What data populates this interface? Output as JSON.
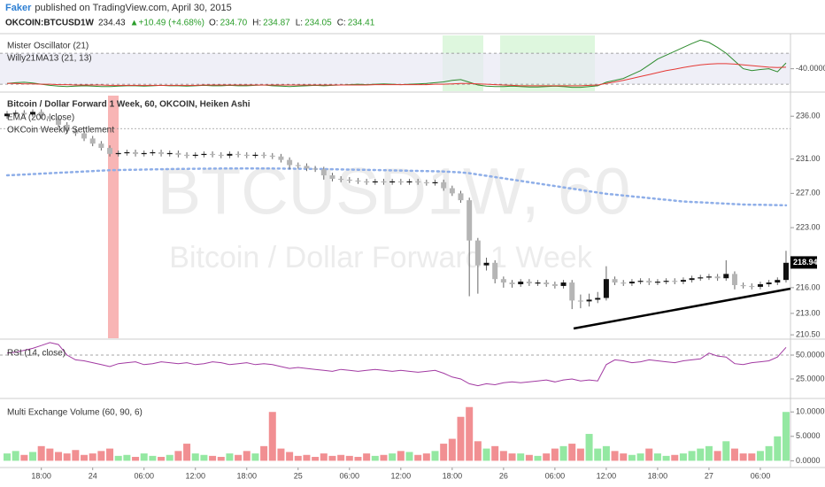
{
  "header": {
    "author": "Faker",
    "published": "published on TradingView.com, April 30, 2015",
    "symbol": "OKCOIN:BTCUSD1W",
    "last": "234.43",
    "change": "▲+10.49 (+4.68%)",
    "ohlc": [
      {
        "label": "O:",
        "value": "234.70"
      },
      {
        "label": "H:",
        "value": "234.87"
      },
      {
        "label": "L:",
        "value": "234.05"
      },
      {
        "label": "C:",
        "value": "234.41"
      }
    ]
  },
  "chart_data": [
    {
      "type": "candlestick",
      "title": "Bitcoin / Dollar Forward 1 Week, 60, OKCOIN, Heiken Ashi",
      "watermark": [
        "BTCUSD1W, 60",
        "Bitcoin / Dollar Forward 1 Week"
      ],
      "categories": [
        null,
        null,
        null,
        null,
        "18:00",
        null,
        null,
        null,
        null,
        null,
        "24",
        null,
        null,
        null,
        null,
        null,
        "06:00",
        null,
        null,
        null,
        null,
        null,
        "12:00",
        null,
        null,
        null,
        null,
        null,
        "18:00",
        null,
        null,
        null,
        null,
        null,
        "25",
        null,
        null,
        null,
        null,
        null,
        "06:00",
        null,
        null,
        null,
        null,
        null,
        "12:00",
        null,
        null,
        null,
        null,
        null,
        "18:00",
        null,
        null,
        null,
        null,
        null,
        "26",
        null,
        null,
        null,
        null,
        null,
        "06:00",
        null,
        null,
        null,
        null,
        null,
        "12:00",
        null,
        null,
        null,
        null,
        null,
        "18:00",
        null,
        null,
        null,
        null,
        null,
        "27",
        null,
        null,
        null,
        null,
        null,
        "06:00",
        null,
        null,
        null
      ],
      "open": [
        236.0,
        236.3,
        236.4,
        236.2,
        236.5,
        236.0,
        235.7,
        235.0,
        234.3,
        234.0,
        233.4,
        232.8,
        232.3,
        231.6,
        231.7,
        231.8,
        231.6,
        231.7,
        231.8,
        231.6,
        231.7,
        231.5,
        231.4,
        231.5,
        231.6,
        231.5,
        231.4,
        231.6,
        231.5,
        231.4,
        231.5,
        231.4,
        231.3,
        230.9,
        230.3,
        230.2,
        229.9,
        229.8,
        229.1,
        228.7,
        228.6,
        228.5,
        228.4,
        228.3,
        228.4,
        228.3,
        228.4,
        228.3,
        228.4,
        228.3,
        228.2,
        228.3,
        227.6,
        227.0,
        226.2,
        221.5,
        218.6,
        218.9,
        217.0,
        216.6,
        216.4,
        216.7,
        216.5,
        216.6,
        216.4,
        216.2,
        216.6,
        214.5,
        214.4,
        214.6,
        214.8,
        217.0,
        216.6,
        216.5,
        216.7,
        216.8,
        216.6,
        216.7,
        216.8,
        216.7,
        216.9,
        217.1,
        217.2,
        217.3,
        217.1,
        217.6,
        216.3,
        216.2,
        216.1,
        216.4,
        216.6,
        216.9
      ],
      "high": [
        236.6,
        236.7,
        236.7,
        236.8,
        236.8,
        236.3,
        236.0,
        235.3,
        234.6,
        234.3,
        233.7,
        233.1,
        232.6,
        232.0,
        232.1,
        232.1,
        232.0,
        232.1,
        232.1,
        232.0,
        232.0,
        231.8,
        231.8,
        231.9,
        231.9,
        231.8,
        231.9,
        231.9,
        231.8,
        231.8,
        231.8,
        231.7,
        231.6,
        231.2,
        230.6,
        230.5,
        230.2,
        230.1,
        229.4,
        229.0,
        228.9,
        228.8,
        228.7,
        228.7,
        228.7,
        228.7,
        228.7,
        228.7,
        228.7,
        228.6,
        228.6,
        228.6,
        227.9,
        227.3,
        226.5,
        221.8,
        219.5,
        219.2,
        217.3,
        216.9,
        217.0,
        217.0,
        216.9,
        216.9,
        216.7,
        216.9,
        216.9,
        215.2,
        215.3,
        215.5,
        218.5,
        217.3,
        216.9,
        217.0,
        217.1,
        217.1,
        217.0,
        217.1,
        217.1,
        217.2,
        217.4,
        217.5,
        217.6,
        217.6,
        219.2,
        217.9,
        216.6,
        216.5,
        216.7,
        216.9,
        217.2,
        220.3
      ],
      "low": [
        235.7,
        236.0,
        235.9,
        235.9,
        235.7,
        235.4,
        234.7,
        234.0,
        233.7,
        233.1,
        232.5,
        232.0,
        231.3,
        231.3,
        231.4,
        231.3,
        231.3,
        231.4,
        231.3,
        231.3,
        231.2,
        231.1,
        231.1,
        231.2,
        231.2,
        231.1,
        231.1,
        231.2,
        231.1,
        231.1,
        231.1,
        231.0,
        230.6,
        229.8,
        229.9,
        229.6,
        229.5,
        228.6,
        228.4,
        228.3,
        228.2,
        228.1,
        228.0,
        228.0,
        228.0,
        228.0,
        228.0,
        228.0,
        228.0,
        227.9,
        227.9,
        227.3,
        226.7,
        225.9,
        215.0,
        215.3,
        218.0,
        216.5,
        216.0,
        216.0,
        216.1,
        216.2,
        216.2,
        216.1,
        215.9,
        215.9,
        213.5,
        213.6,
        213.8,
        214.2,
        214.5,
        216.3,
        216.2,
        216.2,
        216.4,
        216.3,
        216.3,
        216.4,
        216.4,
        216.4,
        216.6,
        216.8,
        216.9,
        216.8,
        216.8,
        215.8,
        215.9,
        215.8,
        215.8,
        216.1,
        216.3,
        216.6
      ],
      "close": [
        236.3,
        236.4,
        236.2,
        236.5,
        236.0,
        235.7,
        235.0,
        234.3,
        234.0,
        233.4,
        232.8,
        232.3,
        231.6,
        231.7,
        231.8,
        231.6,
        231.7,
        231.8,
        231.6,
        231.7,
        231.5,
        231.4,
        231.5,
        231.6,
        231.5,
        231.4,
        231.6,
        231.5,
        231.4,
        231.5,
        231.4,
        231.3,
        230.9,
        230.3,
        230.2,
        229.9,
        229.8,
        229.1,
        228.7,
        228.6,
        228.5,
        228.4,
        228.3,
        228.4,
        228.3,
        228.4,
        228.3,
        228.4,
        228.3,
        228.2,
        228.3,
        227.6,
        227.0,
        226.2,
        221.5,
        218.6,
        218.9,
        217.0,
        216.6,
        216.4,
        216.7,
        216.5,
        216.6,
        216.4,
        216.2,
        216.6,
        214.5,
        214.4,
        214.6,
        214.8,
        217.0,
        216.6,
        216.5,
        216.7,
        216.8,
        216.6,
        216.7,
        216.8,
        216.7,
        216.9,
        217.1,
        217.2,
        217.3,
        217.1,
        217.6,
        216.3,
        216.2,
        216.1,
        216.4,
        216.6,
        216.9,
        218.9
      ],
      "up_color": "#111111",
      "down_color": "#b5b5b5",
      "overlays": [
        {
          "name": "EMA (200, close)",
          "color": "#8eaee8",
          "values": [
            229.1,
            229.15,
            229.2,
            229.25,
            229.3,
            229.35,
            229.4,
            229.45,
            229.5,
            229.55,
            229.6,
            229.65,
            229.7,
            229.72,
            229.74,
            229.76,
            229.78,
            229.8,
            229.82,
            229.84,
            229.85,
            229.86,
            229.87,
            229.88,
            229.89,
            229.9,
            229.9,
            229.9,
            229.9,
            229.9,
            229.9,
            229.9,
            229.89,
            229.88,
            229.87,
            229.86,
            229.85,
            229.84,
            229.82,
            229.8,
            229.78,
            229.76,
            229.74,
            229.72,
            229.7,
            229.68,
            229.66,
            229.64,
            229.62,
            229.6,
            229.58,
            229.55,
            229.5,
            229.45,
            229.35,
            229.2,
            229.05,
            228.9,
            228.75,
            228.6,
            228.45,
            228.3,
            228.15,
            228.0,
            227.85,
            227.7,
            227.55,
            227.4,
            227.25,
            227.1,
            226.95,
            226.85,
            226.75,
            226.65,
            226.55,
            226.45,
            226.35,
            226.25,
            226.15,
            226.05,
            226.0,
            225.95,
            225.9,
            225.85,
            225.8,
            225.75,
            225.7,
            225.68,
            225.66,
            225.64,
            225.62,
            225.6
          ]
        },
        {
          "name": "OKCoin Weekly Settlement",
          "color": "#999999",
          "value": 234.55
        }
      ],
      "ylim": [
        210.1,
        238.4
      ],
      "yticks": [
        {
          "value": 236,
          "label": "236.00"
        },
        {
          "value": 231,
          "label": "231.00"
        },
        {
          "value": 227,
          "label": "227.00"
        },
        {
          "value": 223,
          "label": "223.00"
        },
        {
          "value": 216,
          "label": "216.00"
        },
        {
          "value": 213,
          "label": "213.00"
        },
        {
          "value": 210.5,
          "label": "210.50"
        }
      ],
      "last_price": 218.94
    },
    {
      "type": "line",
      "series": [
        {
          "name": "Mister Oscillator (21)",
          "color": "#2e8b2e",
          "values": [
            -78,
            -76,
            -75,
            -77,
            -80,
            -83,
            -85,
            -86,
            -85,
            -84,
            -85,
            -86,
            -86,
            -85,
            -84,
            -84,
            -85,
            -84,
            -83,
            -84,
            -84,
            -85,
            -84,
            -83,
            -84,
            -84,
            -83,
            -84,
            -84,
            -83,
            -82,
            -84,
            -85,
            -86,
            -85,
            -84,
            -83,
            -84,
            -83,
            -82,
            -81,
            -80,
            -81,
            -80,
            -79,
            -80,
            -81,
            -80,
            -79,
            -78,
            -76,
            -74,
            -70,
            -68,
            -75,
            -82,
            -85,
            -86,
            -86,
            -85,
            -86,
            -87,
            -87,
            -86,
            -85,
            -86,
            -88,
            -88,
            -86,
            -84,
            -75,
            -70,
            -65,
            -55,
            -45,
            -30,
            -15,
            -5,
            5,
            15,
            25,
            34,
            28,
            15,
            0,
            -20,
            -40,
            -45,
            -42,
            -40,
            -48,
            -25
          ]
        },
        {
          "name": "Willy21MA13 (21, 13)",
          "color": "#e53935",
          "values": [
            -78,
            -78,
            -79,
            -79,
            -80,
            -80,
            -81,
            -81,
            -82,
            -82,
            -82,
            -82,
            -83,
            -83,
            -83,
            -83,
            -83,
            -83,
            -83,
            -83,
            -83,
            -83,
            -83,
            -82,
            -82,
            -82,
            -82,
            -82,
            -82,
            -82,
            -82,
            -82,
            -82,
            -82,
            -82,
            -82,
            -82,
            -82,
            -82,
            -82,
            -82,
            -82,
            -82,
            -81,
            -81,
            -81,
            -81,
            -81,
            -81,
            -81,
            -80,
            -80,
            -79,
            -78,
            -78,
            -79,
            -80,
            -81,
            -82,
            -83,
            -84,
            -84,
            -84,
            -84,
            -84,
            -84,
            -84,
            -84,
            -83,
            -82,
            -78,
            -74,
            -70,
            -65,
            -60,
            -55,
            -50,
            -45,
            -41,
            -37,
            -33,
            -30,
            -28,
            -27,
            -27,
            -28,
            -30,
            -32,
            -34,
            -36,
            -37,
            -36
          ]
        }
      ],
      "ylim": [
        -98,
        46
      ],
      "yticks": [
        {
          "value": -40,
          "label": "-40.0000"
        }
      ],
      "hlines": [
        0,
        -80
      ]
    },
    {
      "type": "line",
      "series": [
        {
          "name": "RSI (14, close)",
          "color": "#a23aa2",
          "values": [
            52,
            53,
            55,
            57,
            60,
            63,
            61,
            50,
            45,
            44,
            42,
            40,
            38,
            41,
            42,
            43,
            40,
            41,
            43,
            42,
            41,
            42,
            40,
            41,
            43,
            42,
            40,
            41,
            42,
            40,
            41,
            40,
            38,
            36,
            37,
            36,
            35,
            34,
            33,
            35,
            34,
            33,
            34,
            35,
            34,
            33,
            34,
            33,
            32,
            33,
            34,
            31,
            27,
            25,
            20,
            18,
            20,
            19,
            21,
            22,
            21,
            22,
            23,
            24,
            22,
            24,
            25,
            23,
            24,
            23,
            40,
            45,
            44,
            42,
            43,
            45,
            44,
            43,
            42,
            44,
            45,
            46,
            52,
            49,
            48,
            41,
            40,
            42,
            43,
            44,
            48,
            58
          ]
        }
      ],
      "ylim": [
        6.5,
        64.8
      ],
      "yticks": [
        {
          "value": 50,
          "label": "50.0000"
        },
        {
          "value": 25,
          "label": "25.0000"
        }
      ],
      "hlines": [
        50
      ]
    },
    {
      "type": "bar",
      "series": [
        {
          "name": "Multi Exchange Volume (60, 90, 6)",
          "up_color": "#4cd964",
          "down_color": "#e8454a",
          "values": [
            1.5,
            2.0,
            1.2,
            1.8,
            3.0,
            2.5,
            1.8,
            1.5,
            2.2,
            1.2,
            1.5,
            2.0,
            2.5,
            1.0,
            1.2,
            0.8,
            1.5,
            1.0,
            0.8,
            1.2,
            2.0,
            3.5,
            1.5,
            1.2,
            1.0,
            0.8,
            1.5,
            1.2,
            2.0,
            1.5,
            3.0,
            10.0,
            2.5,
            1.8,
            1.0,
            1.2,
            0.8,
            1.5,
            1.0,
            1.2,
            1.0,
            0.8,
            1.5,
            1.0,
            1.2,
            1.5,
            2.0,
            1.8,
            1.2,
            1.5,
            2.0,
            3.5,
            4.5,
            9.0,
            11.0,
            4.0,
            2.5,
            3.0,
            2.0,
            1.5,
            1.5,
            1.2,
            1.0,
            1.5,
            2.5,
            3.0,
            3.5,
            2.5,
            5.5,
            2.5,
            3.0,
            2.0,
            1.5,
            1.2,
            1.5,
            2.5,
            1.5,
            1.0,
            1.2,
            1.5,
            2.0,
            2.5,
            3.0,
            2.0,
            4.0,
            2.5,
            1.5,
            1.5,
            2.0,
            3.0,
            5.0,
            10.0
          ]
        }
      ],
      "ylim": [
        -1.2,
        12.4
      ],
      "yticks": [
        {
          "value": 10,
          "label": "10.0000"
        },
        {
          "value": 5,
          "label": "5.0000"
        },
        {
          "value": 0,
          "label": "0.0000"
        }
      ]
    }
  ]
}
